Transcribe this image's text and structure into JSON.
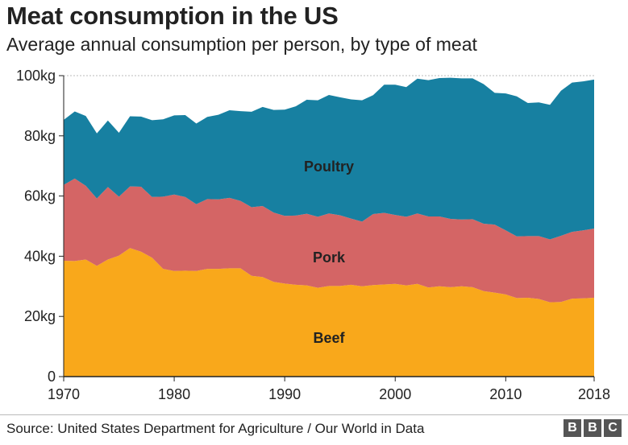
{
  "header": {
    "title": "Meat consumption in the US",
    "subtitle": "Average annual consumption per person, by type of meat"
  },
  "footer": {
    "source": "Source: United States Department for Agriculture / Our World in Data",
    "logo": [
      "B",
      "B",
      "C"
    ]
  },
  "colors": {
    "beef": "#F9A81B",
    "pork": "#D46565",
    "poultry": "#1780A1",
    "axis": "#222222",
    "grid": "#bbbbbb"
  },
  "chart_data": {
    "type": "area",
    "stacked": true,
    "title": "Meat consumption in the US",
    "subtitle": "Average annual consumption per person, by type of meat",
    "xlim": [
      1970,
      2018
    ],
    "ylim": [
      0,
      100
    ],
    "grid": true,
    "x_ticks": [
      "1970",
      "1980",
      "1990",
      "2000",
      "2010",
      "2018"
    ],
    "y_ticks": [
      "0",
      "20kg",
      "40kg",
      "60kg",
      "80kg",
      "100kg"
    ],
    "x": [
      1970,
      1971,
      1972,
      1973,
      1974,
      1975,
      1976,
      1977,
      1978,
      1979,
      1980,
      1981,
      1982,
      1983,
      1984,
      1985,
      1986,
      1987,
      1988,
      1989,
      1990,
      1991,
      1992,
      1993,
      1994,
      1995,
      1996,
      1997,
      1998,
      1999,
      2000,
      2001,
      2002,
      2003,
      2004,
      2005,
      2006,
      2007,
      2008,
      2009,
      2010,
      2011,
      2012,
      2013,
      2014,
      2015,
      2016,
      2017,
      2018
    ],
    "series": [
      {
        "name": "Beef",
        "values": [
          38.5,
          38.4,
          38.9,
          36.8,
          38.9,
          40.2,
          42.7,
          41.5,
          39.5,
          35.8,
          35.1,
          35.2,
          35.1,
          35.8,
          35.8,
          36.0,
          36.0,
          33.5,
          33.1,
          31.5,
          30.9,
          30.5,
          30.3,
          29.5,
          30.1,
          30.1,
          30.5,
          30.0,
          30.4,
          30.6,
          30.8,
          30.3,
          30.8,
          29.6,
          30.0,
          29.7,
          30.0,
          29.7,
          28.4,
          27.9,
          27.3,
          26.1,
          26.2,
          25.8,
          24.7,
          24.8,
          25.9,
          26.0,
          26.2
        ]
      },
      {
        "name": "Pork",
        "values": [
          25.2,
          27.4,
          24.5,
          22.4,
          24.1,
          19.6,
          20.5,
          21.6,
          20.2,
          24.0,
          25.4,
          24.5,
          22.2,
          23.2,
          23.1,
          23.4,
          22.4,
          22.8,
          23.6,
          23.0,
          22.5,
          23.0,
          23.8,
          23.6,
          24.1,
          23.5,
          22.0,
          21.5,
          23.6,
          23.8,
          22.9,
          22.8,
          23.4,
          23.6,
          23.2,
          22.7,
          22.2,
          22.6,
          22.4,
          22.6,
          21.3,
          20.5,
          20.5,
          20.9,
          20.9,
          22.0,
          22.2,
          22.6,
          23.0
        ]
      },
      {
        "name": "Poultry",
        "values": [
          21.6,
          22.3,
          23.2,
          21.6,
          22.1,
          21.2,
          23.3,
          23.3,
          25.5,
          25.7,
          26.3,
          27.2,
          26.8,
          27.3,
          28.1,
          29.1,
          29.8,
          31.7,
          32.9,
          34.1,
          35.3,
          36.3,
          37.9,
          38.7,
          39.4,
          39.2,
          39.6,
          40.3,
          39.5,
          42.6,
          43.3,
          43.1,
          44.8,
          45.3,
          46.0,
          46.9,
          46.9,
          46.8,
          46.4,
          43.8,
          45.5,
          46.5,
          44.2,
          44.4,
          44.7,
          48.2,
          49.6,
          49.5,
          49.5
        ]
      }
    ],
    "series_labels": [
      "Beef",
      "Pork",
      "Poultry"
    ]
  }
}
